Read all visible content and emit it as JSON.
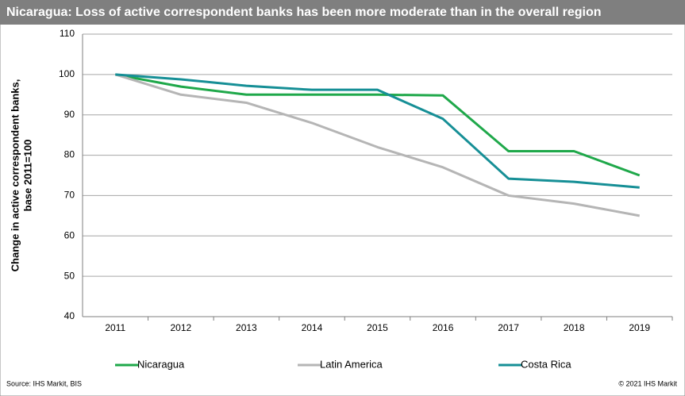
{
  "chart_data": {
    "type": "line",
    "title": "Nicaragua: Loss of active correspondent banks has been more moderate than in the overall region",
    "y_label": [
      "Change in active correspondent banks,",
      "base 2011=100"
    ],
    "categories": [
      "2011",
      "2012",
      "2013",
      "2014",
      "2015",
      "2016",
      "2017",
      "2018",
      "2019"
    ],
    "series": [
      {
        "name": "Nicaragua",
        "color": "#1fa84a",
        "values": [
          100,
          97,
          95,
          95,
          95,
          94.8,
          81,
          81,
          75
        ]
      },
      {
        "name": "Latin America",
        "color": "#b5b5b5",
        "values": [
          100,
          95,
          93,
          88,
          82,
          77,
          70,
          68,
          65
        ]
      },
      {
        "name": "Costa Rica",
        "color": "#168f96",
        "values": [
          100,
          98.8,
          97.2,
          96.2,
          96.2,
          89,
          74.2,
          73.4,
          72
        ]
      }
    ],
    "ylim": [
      40,
      110
    ],
    "yticks": [
      40,
      50,
      60,
      70,
      80,
      90,
      100,
      110
    ],
    "grid": true,
    "legend": "bottom",
    "source": "Source: IHS Markit, BIS",
    "copyright": "© 2021 IHS Markit"
  }
}
